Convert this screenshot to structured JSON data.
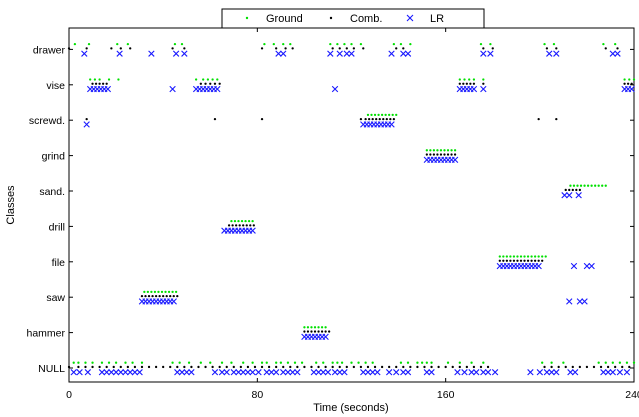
{
  "chart_data": {
    "type": "scatter",
    "title": "",
    "xlabel": "Time (seconds)",
    "ylabel": "Classes",
    "xlim": [
      0,
      240
    ],
    "xticks": [
      0,
      80,
      160,
      240
    ],
    "categories": [
      "NULL",
      "hammer",
      "saw",
      "file",
      "drill",
      "sand.",
      "grind",
      "screwd.",
      "vise",
      "drawer"
    ],
    "legend": {
      "position": "top-center",
      "entries": [
        "Ground",
        "Comb.",
        "LR"
      ]
    },
    "grid": false,
    "series": [
      {
        "name": "Ground",
        "marker": "dot",
        "color": "#00e000",
        "y_offset": 0.15,
        "segments": [
          {
            "class": "drawer",
            "x": [
              2.5,
              8.5,
              20.5,
              25,
              45,
              48,
              83,
              87,
              91,
              94,
              111,
              114,
              117,
              120,
              124,
              138,
              141,
              145,
              175,
              179,
              202,
              206,
              227,
              232
            ]
          },
          {
            "class": "vise",
            "x": [
              9,
              11,
              13,
              17,
              21,
              54,
              57,
              59,
              61,
              63,
              166,
              168,
              170,
              172,
              176,
              236,
              238,
              240
            ]
          },
          {
            "class": "screwd.",
            "x": [
              127,
              128.5,
              130,
              131.5,
              133,
              134.5,
              136,
              137.5,
              139
            ]
          },
          {
            "class": "grind",
            "x": [
              152,
              153.5,
              155,
              156.5,
              158,
              159.5,
              161,
              162.5,
              164
            ]
          },
          {
            "class": "sand.",
            "x": [
              213,
              214.5,
              216,
              217.5,
              219,
              220.5,
              222,
              223.5,
              225,
              226.5,
              228
            ]
          },
          {
            "class": "drill",
            "x": [
              69,
              70.5,
              72,
              73.5,
              75,
              76.5,
              78
            ]
          },
          {
            "class": "file",
            "x": [
              183,
              184.5,
              186,
              187.5,
              189,
              190.5,
              192,
              193.5,
              195,
              196.5,
              198,
              199.5,
              201,
              202.5
            ]
          },
          {
            "class": "saw",
            "x": [
              32,
              33.5,
              35,
              36.5,
              38,
              39.5,
              41,
              42.5,
              44,
              45.5
            ]
          },
          {
            "class": "hammer",
            "x": [
              100,
              101.5,
              103,
              104.5,
              106,
              107.5,
              109
            ]
          },
          {
            "class": "NULL",
            "x": [
              2,
              4,
              7,
              10,
              14,
              17,
              20,
              24,
              27,
              31,
              44,
              47,
              51,
              56,
              60,
              65,
              69,
              74,
              78,
              82,
              84,
              88,
              90,
              93,
              96,
              99,
              105,
              108,
              112,
              114,
              116,
              120,
              123,
              126,
              129,
              141,
              144,
              148,
              150,
              152,
              154,
              161,
              166,
              171,
              176,
              201,
              205,
              210,
              225,
              228,
              231,
              234,
              237,
              240
            ]
          }
        ]
      },
      {
        "name": "Comb.",
        "marker": "dot",
        "color": "#000000",
        "y_offset": 0.03,
        "segments": [
          {
            "class": "drawer",
            "x": [
              0,
              7.5,
              18,
              22,
              26,
              44,
              49,
              82,
              88,
              92,
              95,
              112,
              115,
              118,
              121,
              125,
              139,
              142,
              176,
              180,
              203,
              207,
              228,
              233
            ]
          },
          {
            "class": "vise",
            "x": [
              10,
              11.5,
              13,
              14.5,
              16,
              56,
              58,
              60,
              62,
              64,
              166,
              167.5,
              169,
              170.5,
              172,
              176,
              236,
              237.5,
              239
            ]
          },
          {
            "class": "screwd.",
            "x": [
              7.5,
              62,
              82,
              124,
              126,
              127.5,
              129,
              130.5,
              132,
              133.5,
              135,
              136.5,
              138,
              199.5,
              207
            ]
          },
          {
            "class": "grind",
            "x": [
              152,
              153.5,
              155,
              156.5,
              158,
              159.5,
              161,
              162.5,
              164
            ]
          },
          {
            "class": "sand.",
            "x": [
              211,
              212.5,
              214,
              215.5,
              217
            ]
          },
          {
            "class": "drill",
            "x": [
              68,
              69.5,
              71,
              72.5,
              74,
              75.5,
              77,
              78.5
            ]
          },
          {
            "class": "file",
            "x": [
              183,
              184.5,
              186,
              187.5,
              189,
              190.5,
              192,
              193.5,
              195,
              196.5,
              198,
              199.5,
              201
            ]
          },
          {
            "class": "saw",
            "x": [
              31,
              32.5,
              34,
              35.5,
              37,
              38.5,
              40,
              41.5,
              43,
              44.5,
              46
            ]
          },
          {
            "class": "hammer",
            "x": [
              100,
              101.5,
              103,
              104.5,
              106,
              107.5,
              109,
              110.5
            ]
          },
          {
            "class": "NULL",
            "x": [
              0,
              4,
              7,
              10,
              13,
              16,
              19,
              22,
              25,
              28,
              31,
              34,
              37,
              40,
              43,
              46,
              49,
              52,
              55,
              58,
              61,
              64,
              67,
              70,
              73,
              76,
              79,
              82,
              85,
              88,
              91,
              94,
              97,
              100,
              103,
              106,
              109,
              112,
              115,
              118,
              121,
              124,
              127,
              130,
              133,
              136,
              139,
              142,
              145,
              148,
              151,
              154,
              157,
              160,
              163,
              166,
              169,
              172,
              175,
              178,
              202,
              205,
              208,
              211,
              214,
              217,
              220,
              223,
              226,
              229,
              232,
              235,
              238
            ]
          }
        ]
      },
      {
        "name": "LR",
        "marker": "x",
        "color": "#1a1aff",
        "y_offset": -0.12,
        "segments": [
          {
            "class": "drawer",
            "x": [
              6.5,
              21.5,
              35,
              45.5,
              49,
              89,
              91,
              111,
              115,
              118,
              120,
              137,
              142,
              144,
              176,
              179,
              204,
              207,
              231,
              233
            ]
          },
          {
            "class": "vise",
            "x": [
              9,
              10.5,
              12,
              13.5,
              15,
              16.5,
              44,
              54,
              55.5,
              57,
              58.5,
              60,
              61.5,
              63,
              113,
              166,
              167.5,
              169,
              170.5,
              172,
              176,
              236,
              237.5,
              239
            ]
          },
          {
            "class": "screwd.",
            "x": [
              7.5,
              125,
              126.5,
              128,
              129.5,
              131,
              132.5,
              134,
              135.5,
              137
            ]
          },
          {
            "class": "grind",
            "x": [
              152,
              153.5,
              155,
              156.5,
              158,
              159.5,
              161,
              162.5,
              164
            ]
          },
          {
            "class": "sand.",
            "x": [
              210.5,
              212.5,
              216.5
            ]
          },
          {
            "class": "drill",
            "x": [
              66,
              67.5,
              69,
              70.5,
              72,
              73.5,
              75,
              76.5,
              78
            ]
          },
          {
            "class": "file",
            "x": [
              183,
              184.5,
              186,
              187.5,
              189,
              190.5,
              192,
              193.5,
              195,
              196.5,
              198,
              199.5,
              214.5,
              220,
              222
            ]
          },
          {
            "class": "saw",
            "x": [
              31,
              32.5,
              34,
              35.5,
              37,
              38.5,
              40,
              41.5,
              43,
              44.5,
              212.5,
              217,
              219
            ]
          },
          {
            "class": "hammer",
            "x": [
              100,
              101.5,
              103,
              104.5,
              106,
              107.5,
              109
            ]
          },
          {
            "class": "NULL",
            "x": [
              2,
              4.5,
              8,
              14,
              16,
              18,
              20,
              22,
              24,
              26,
              28,
              30,
              46,
              48,
              50,
              52,
              62,
              65,
              67,
              70,
              72,
              74,
              76,
              78,
              80.5,
              84,
              86,
              88,
              91,
              93,
              95,
              97,
              104,
              106,
              108,
              110,
              113,
              115,
              117,
              125,
              127,
              129,
              131,
              136,
              139,
              142,
              144,
              152,
              154,
              165,
              168,
              171,
              173,
              176,
              178,
              181,
              196,
              200,
              203,
              205,
              207,
              213,
              215,
              227,
              229,
              231,
              234,
              237
            ]
          }
        ]
      }
    ]
  }
}
